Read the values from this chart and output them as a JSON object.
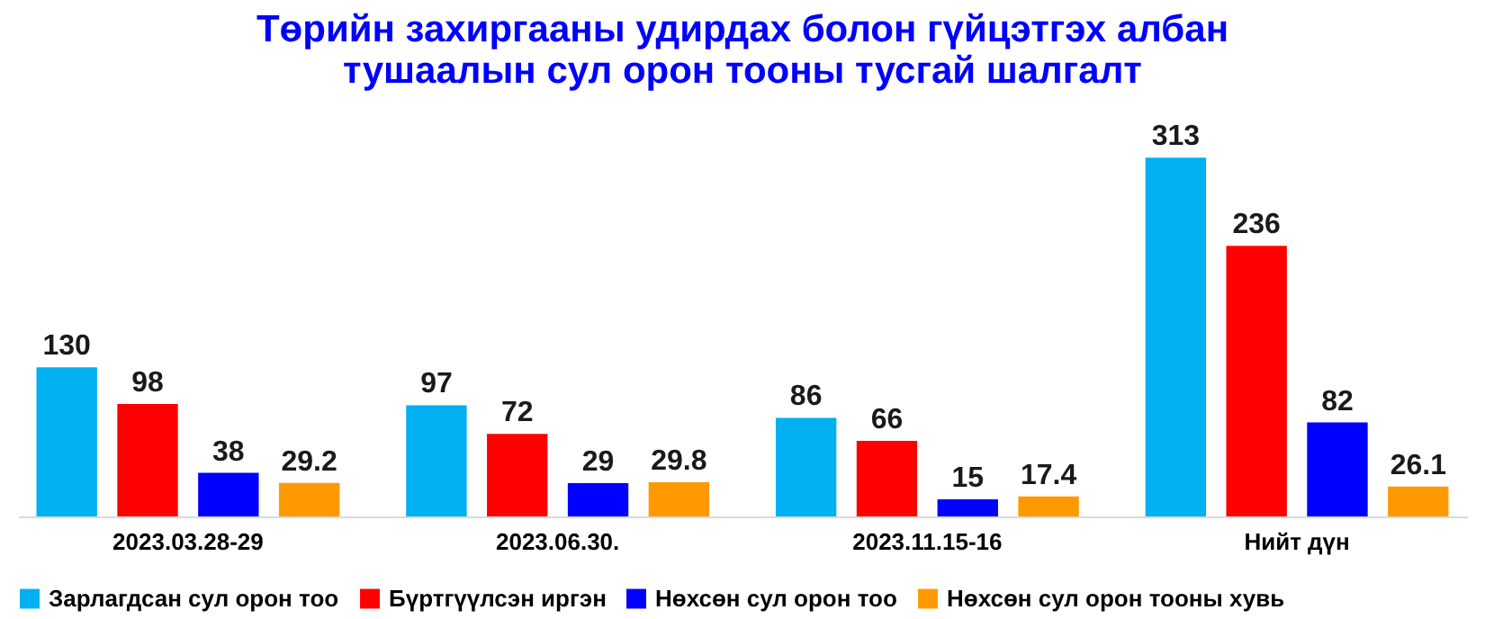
{
  "chart_data": {
    "type": "bar",
    "title": [
      "Төрийн захиргааны удирдах болон гүйцэтгэх албан",
      "тушаалын сул орон тооны тусгай шалгалт"
    ],
    "categories": [
      "2023.03.28-29",
      "2023.06.30.",
      "2023.11.15-16",
      "Нийт дүн"
    ],
    "series": [
      {
        "name": "Зарлагдсан сул орон тоо",
        "color": "#00b0f0",
        "values": [
          130,
          97,
          86,
          313
        ]
      },
      {
        "name": "Бүртгүүлсэн иргэн",
        "color": "#ff0000",
        "values": [
          98,
          72,
          66,
          236
        ]
      },
      {
        "name": "Нөхсөн сул орон тоо",
        "color": "#0000ff",
        "values": [
          38,
          29,
          15,
          82
        ]
      },
      {
        "name": "Нөхсөн сул орон тооны хувь",
        "color": "#ff9900",
        "values": [
          29.2,
          29.8,
          17.4,
          26.1
        ]
      }
    ],
    "data_labels": true,
    "legend": "bottom",
    "grid": false
  }
}
